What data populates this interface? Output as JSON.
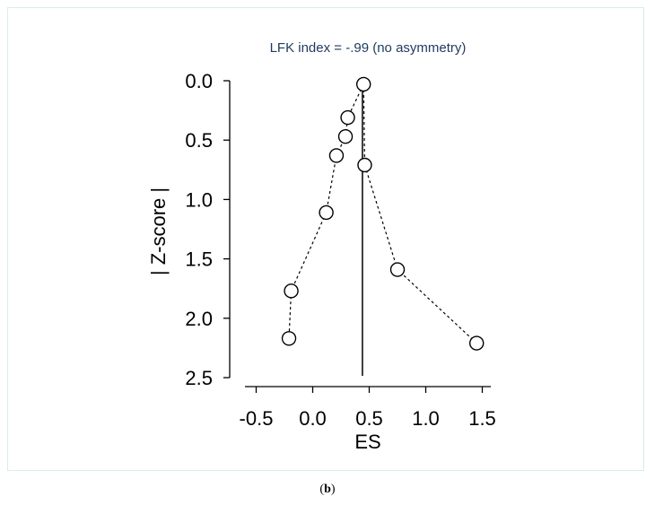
{
  "chart_data": {
    "type": "scatter",
    "title": "LFK index = -.99 (no asymmetry)",
    "xlabel": "ES",
    "ylabel": "| Z-score |",
    "xlim": [
      -0.6,
      1.6
    ],
    "ylim": [
      0.0,
      2.5
    ],
    "y_reversed": true,
    "x_ticks": [
      -0.5,
      0.0,
      0.5,
      1.0,
      1.5
    ],
    "x_tick_labels": [
      "-0.5",
      "0.0",
      "0.5",
      "1.0",
      "1.5"
    ],
    "y_ticks": [
      0.0,
      0.5,
      1.0,
      1.5,
      2.0,
      2.5
    ],
    "y_tick_labels": [
      "0.0",
      "0.5",
      "1.0",
      "1.5",
      "2.0",
      "2.5"
    ],
    "grid": false,
    "reference_line_x": 0.44,
    "points": [
      {
        "x": -0.21,
        "y": 2.17
      },
      {
        "x": -0.19,
        "y": 1.77
      },
      {
        "x": 0.12,
        "y": 1.11
      },
      {
        "x": 0.21,
        "y": 0.63
      },
      {
        "x": 0.29,
        "y": 0.47
      },
      {
        "x": 0.31,
        "y": 0.31
      },
      {
        "x": 0.45,
        "y": 0.03
      },
      {
        "x": 0.46,
        "y": 0.71
      },
      {
        "x": 0.75,
        "y": 1.59
      },
      {
        "x": 1.45,
        "y": 2.21
      }
    ],
    "left_path_order": [
      6,
      5,
      4,
      3,
      2,
      1,
      0
    ],
    "right_path_order": [
      6,
      7,
      8,
      9
    ],
    "colors": {
      "title": "#1f3a5f",
      "axis": "#000000",
      "points_fill": "#ffffff",
      "points_stroke": "#000000"
    }
  },
  "caption": {
    "open": "(",
    "label": "b",
    "close": ")"
  }
}
